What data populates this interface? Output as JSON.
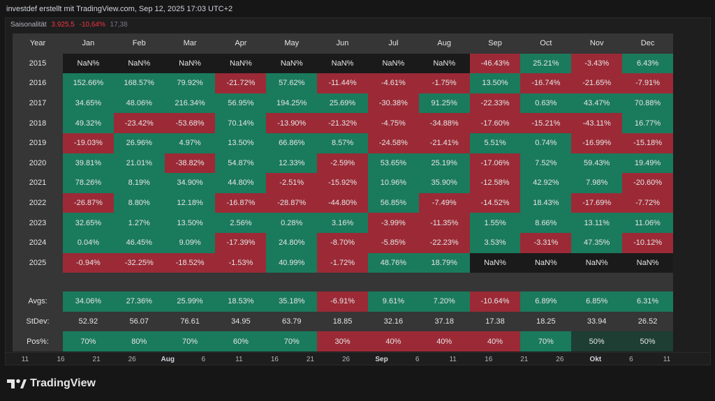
{
  "header": {
    "text": "investdef erstellt mit TradingView.com, Sep 12, 2025 17:03 UTC+2"
  },
  "indicator": {
    "name": "Saisonalität",
    "value1": "3.925,5",
    "value2": "-10,64%",
    "value3": "17,38"
  },
  "table": {
    "header": [
      "Year",
      "Jan",
      "Feb",
      "Mar",
      "Apr",
      "May",
      "Jun",
      "Jul",
      "Aug",
      "Sep",
      "Oct",
      "Nov",
      "Dec"
    ],
    "years": [
      {
        "year": "2015",
        "cells": [
          "NaN%",
          "NaN%",
          "NaN%",
          "NaN%",
          "NaN%",
          "NaN%",
          "NaN%",
          "NaN%",
          "-46.43%",
          "25.21%",
          "-3.43%",
          "6.43%"
        ]
      },
      {
        "year": "2016",
        "cells": [
          "152.66%",
          "168.57%",
          "79.92%",
          "-21.72%",
          "57.62%",
          "-11.44%",
          "-4.61%",
          "-1.75%",
          "13.50%",
          "-16.74%",
          "-21.65%",
          "-7.91%"
        ]
      },
      {
        "year": "2017",
        "cells": [
          "34.65%",
          "48.06%",
          "216.34%",
          "56.95%",
          "194.25%",
          "25.69%",
          "-30.38%",
          "91.25%",
          "-22.33%",
          "0.63%",
          "43.47%",
          "70.88%"
        ]
      },
      {
        "year": "2018",
        "cells": [
          "49.32%",
          "-23.42%",
          "-53.68%",
          "70.14%",
          "-13.90%",
          "-21.32%",
          "-4.75%",
          "-34.88%",
          "-17.60%",
          "-15.21%",
          "-43.11%",
          "16.77%"
        ]
      },
      {
        "year": "2019",
        "cells": [
          "-19.03%",
          "26.96%",
          "4.97%",
          "13.50%",
          "66.86%",
          "8.57%",
          "-24.58%",
          "-21.41%",
          "5.51%",
          "0.74%",
          "-16.99%",
          "-15.18%"
        ]
      },
      {
        "year": "2020",
        "cells": [
          "39.81%",
          "21.01%",
          "-38.82%",
          "54.87%",
          "12.33%",
          "-2.59%",
          "53.65%",
          "25.19%",
          "-17.06%",
          "7.52%",
          "59.43%",
          "19.49%"
        ]
      },
      {
        "year": "2021",
        "cells": [
          "78.26%",
          "8.19%",
          "34.90%",
          "44.80%",
          "-2.51%",
          "-15.92%",
          "10.96%",
          "35.90%",
          "-12.58%",
          "42.92%",
          "7.98%",
          "-20.60%"
        ]
      },
      {
        "year": "2022",
        "cells": [
          "-26.87%",
          "8.80%",
          "12.18%",
          "-16.87%",
          "-28.87%",
          "-44.80%",
          "56.85%",
          "-7.49%",
          "-14.52%",
          "18.43%",
          "-17.69%",
          "-7.72%"
        ]
      },
      {
        "year": "2023",
        "cells": [
          "32.65%",
          "1.27%",
          "13.50%",
          "2.56%",
          "0.28%",
          "3.16%",
          "-3.99%",
          "-11.35%",
          "1.55%",
          "8.66%",
          "13.11%",
          "11.06%"
        ]
      },
      {
        "year": "2024",
        "cells": [
          "0.04%",
          "46.45%",
          "9.09%",
          "-17.39%",
          "24.80%",
          "-8.70%",
          "-5.85%",
          "-22.23%",
          "3.53%",
          "-3.31%",
          "47.35%",
          "-10.12%"
        ]
      },
      {
        "year": "2025",
        "cells": [
          "-0.94%",
          "-32.25%",
          "-18.52%",
          "-1.53%",
          "40.99%",
          "-1.72%",
          "48.76%",
          "18.79%",
          "NaN%",
          "NaN%",
          "NaN%",
          "NaN%"
        ]
      }
    ],
    "stats": [
      {
        "label": "Avgs:",
        "cells": [
          "34.06%",
          "27.36%",
          "25.99%",
          "18.53%",
          "35.18%",
          "-6.91%",
          "9.61%",
          "7.20%",
          "-10.64%",
          "6.89%",
          "6.85%",
          "6.31%"
        ],
        "colored": true
      },
      {
        "label": "StDev:",
        "cells": [
          "52.92",
          "56.07",
          "76.61",
          "34.95",
          "63.79",
          "18.85",
          "32.16",
          "37.18",
          "17.38",
          "18.25",
          "33.94",
          "26.52"
        ],
        "colored": false
      },
      {
        "label": "Pos%:",
        "cells": [
          "70%",
          "80%",
          "70%",
          "60%",
          "70%",
          "30%",
          "40%",
          "40%",
          "40%",
          "70%",
          "50%",
          "50%"
        ],
        "colored": true
      }
    ]
  },
  "axis": {
    "ticks": [
      {
        "label": "11",
        "bold": false
      },
      {
        "label": "16",
        "bold": false
      },
      {
        "label": "21",
        "bold": false
      },
      {
        "label": "26",
        "bold": false
      },
      {
        "label": "Aug",
        "bold": true
      },
      {
        "label": "6",
        "bold": false
      },
      {
        "label": "11",
        "bold": false
      },
      {
        "label": "16",
        "bold": false
      },
      {
        "label": "21",
        "bold": false
      },
      {
        "label": "26",
        "bold": false
      },
      {
        "label": "Sep",
        "bold": true
      },
      {
        "label": "6",
        "bold": false
      },
      {
        "label": "11",
        "bold": false
      },
      {
        "label": "16",
        "bold": false
      },
      {
        "label": "21",
        "bold": false
      },
      {
        "label": "26",
        "bold": false
      },
      {
        "label": "Okt",
        "bold": true
      },
      {
        "label": "6",
        "bold": false
      },
      {
        "label": "11",
        "bold": false
      }
    ]
  },
  "brand": {
    "name": "TradingView",
    "logo_icon": "tradingview-logo-icon"
  },
  "colors": {
    "positive": "#1a7a5c",
    "negative": "#9b2a36",
    "nan": "#1a1a1a",
    "header": "#363636",
    "text": "#e6e6e6",
    "accent_red": "#f23645"
  }
}
